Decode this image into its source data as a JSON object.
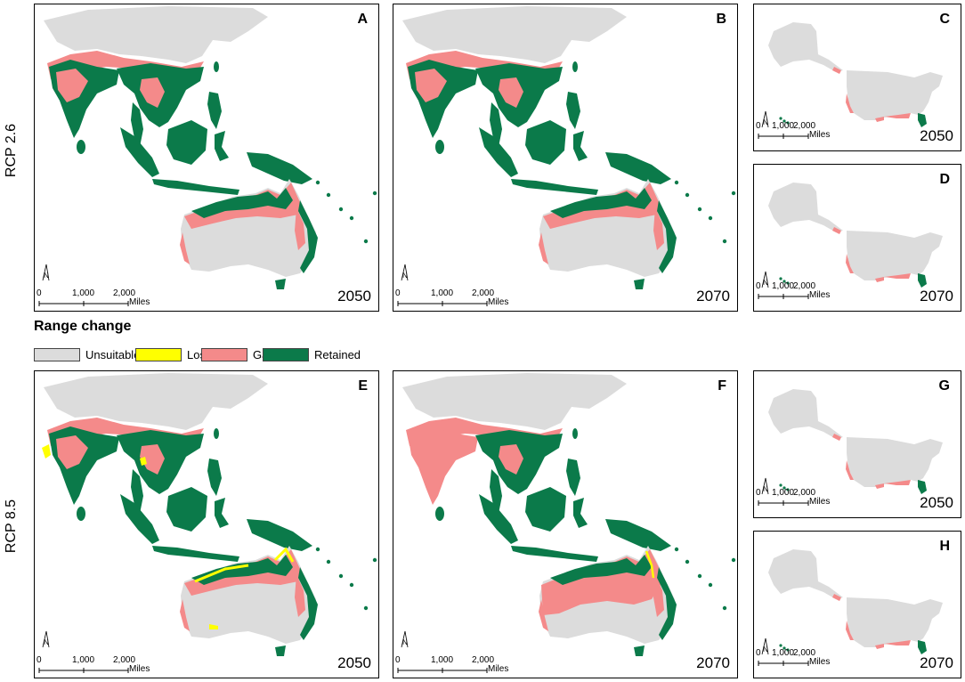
{
  "figure": {
    "rows": [
      {
        "label": "RCP 2.6"
      },
      {
        "label": "RCP 8.5"
      }
    ],
    "legend": {
      "title": "Range change",
      "items": [
        {
          "label": "Unsuitable",
          "color": "#dcdcdc"
        },
        {
          "label": "Lost",
          "color": "#ffff00"
        },
        {
          "label": "Gain",
          "color": "#f48a8a"
        },
        {
          "label": "Retained",
          "color": "#0b7a4a"
        }
      ]
    },
    "panels": [
      {
        "letter": "A",
        "year": "2050",
        "region": "asia-pacific"
      },
      {
        "letter": "B",
        "year": "2070",
        "region": "asia-pacific"
      },
      {
        "letter": "C",
        "year": "2050",
        "region": "usa"
      },
      {
        "letter": "D",
        "year": "2070",
        "region": "usa"
      },
      {
        "letter": "E",
        "year": "2050",
        "region": "asia-pacific"
      },
      {
        "letter": "F",
        "year": "2070",
        "region": "asia-pacific"
      },
      {
        "letter": "G",
        "year": "2050",
        "region": "usa"
      },
      {
        "letter": "H",
        "year": "2070",
        "region": "usa"
      }
    ],
    "scalebar": {
      "zero": "0",
      "mid": "1,000",
      "end": "2,000",
      "unit": "Miles"
    },
    "north_arrow": "N"
  }
}
